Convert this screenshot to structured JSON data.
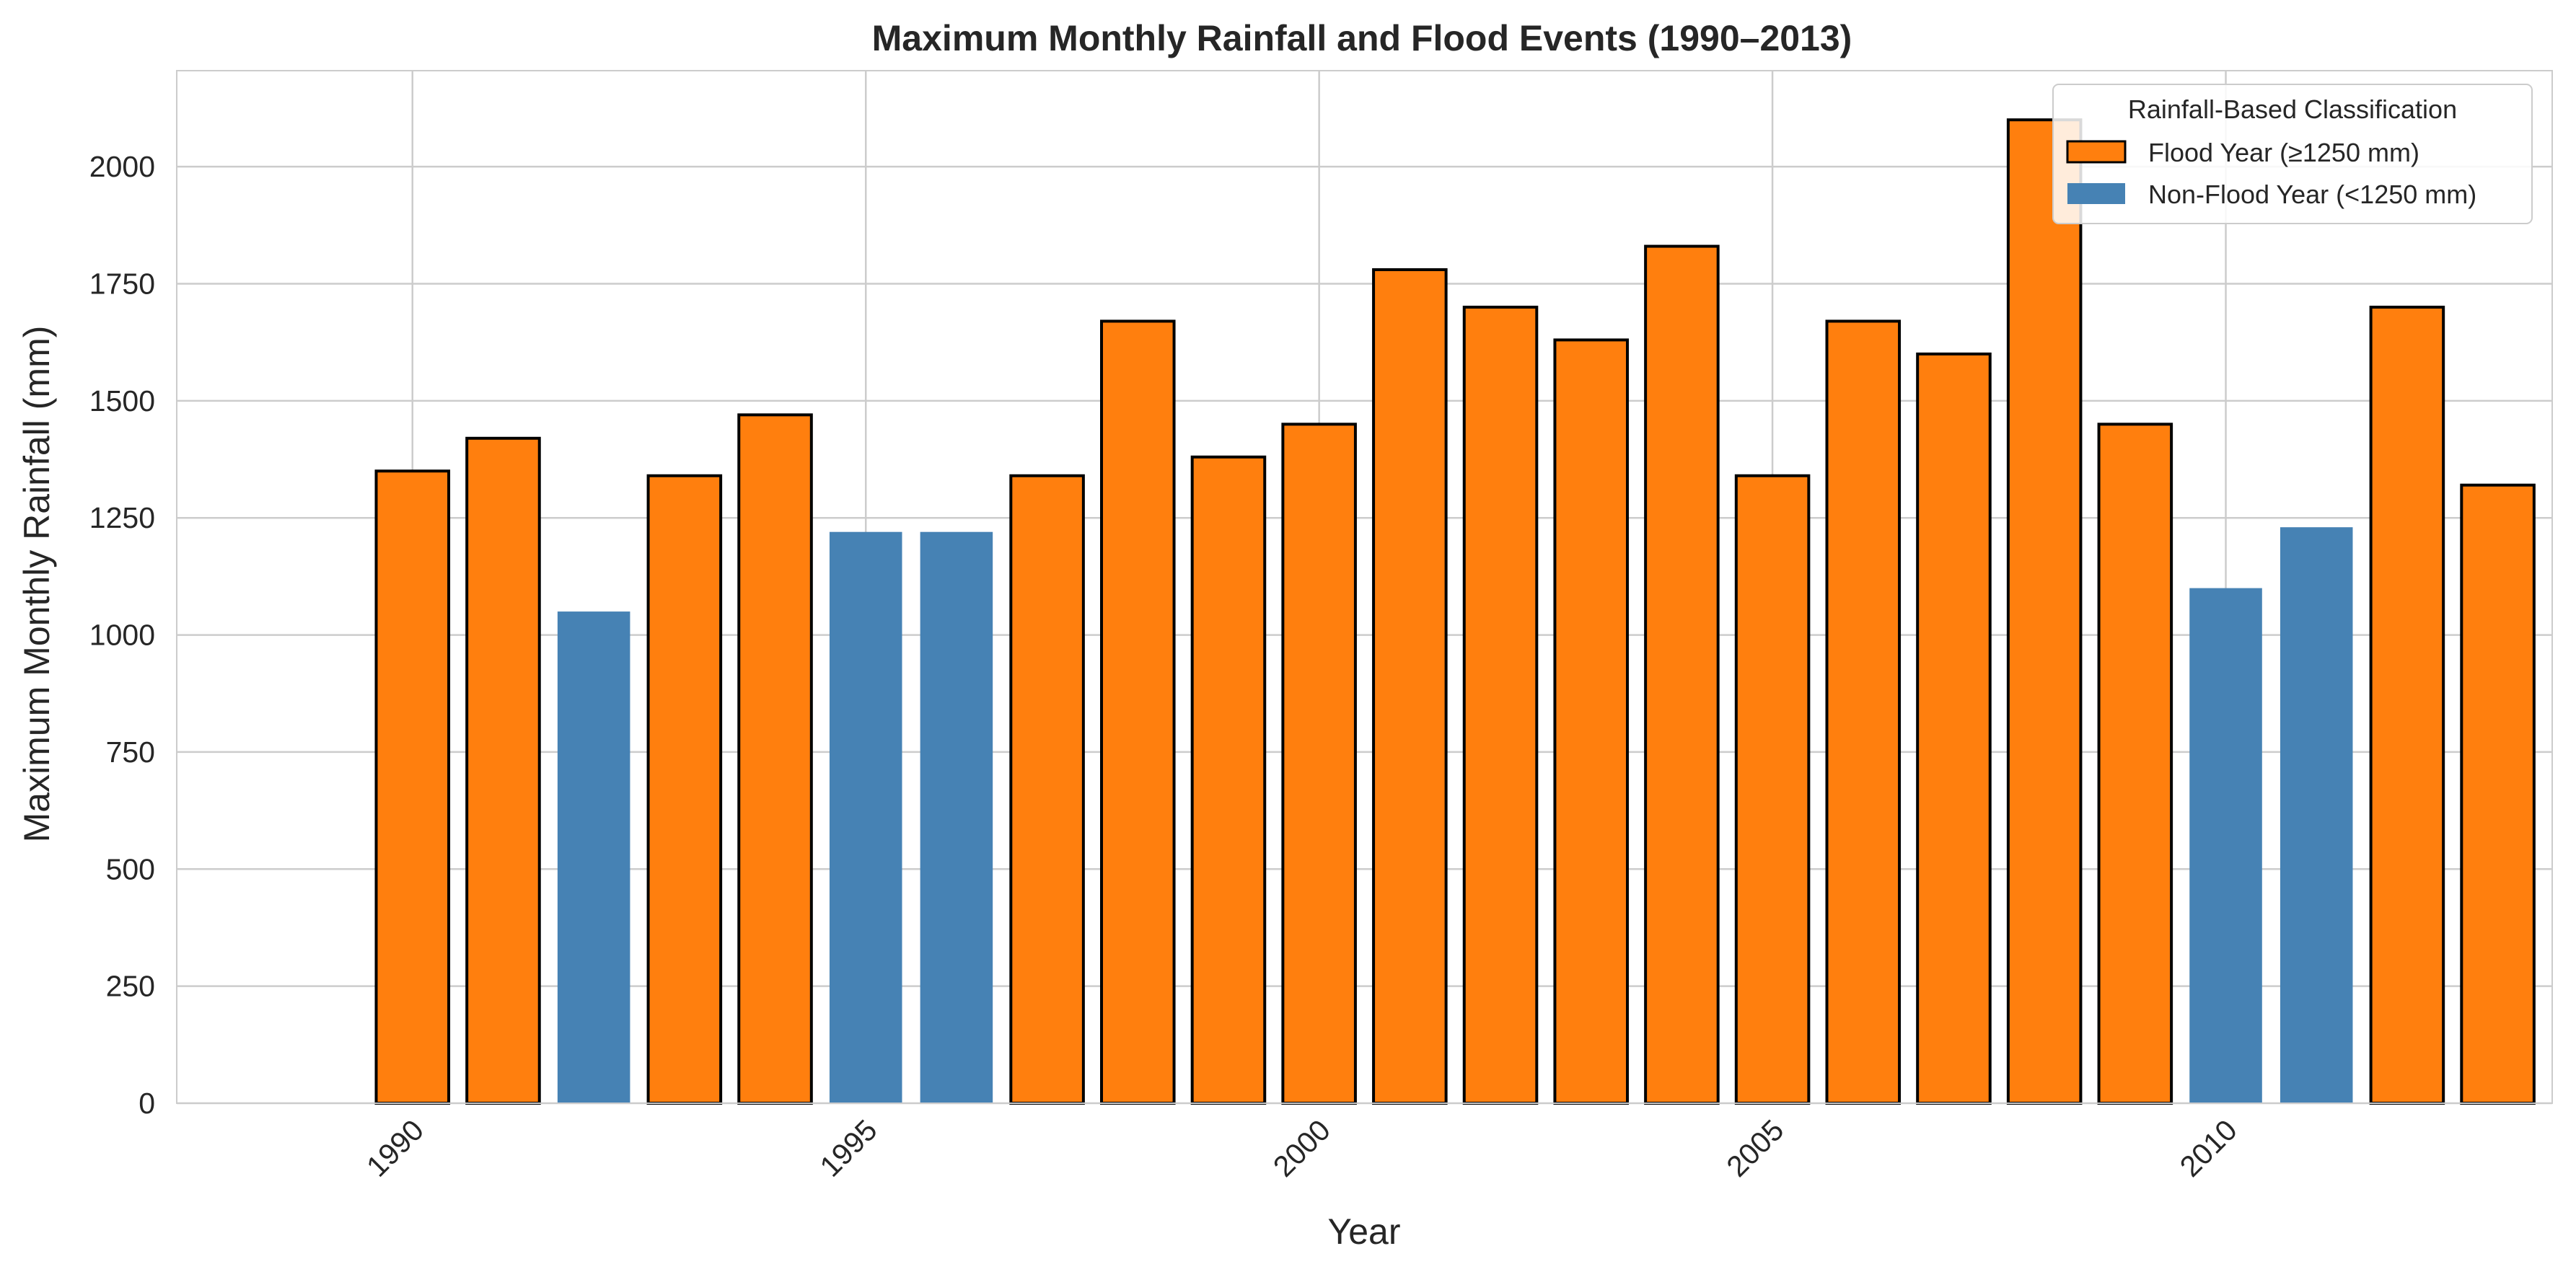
{
  "chart_data": {
    "type": "bar",
    "title": "Maximum Monthly Rainfall and Flood Events (1990–2013)",
    "xlabel": "Year",
    "ylabel": "Maximum Monthly Rainfall (mm)",
    "categories": [
      1990,
      1991,
      1992,
      1993,
      1994,
      1995,
      1996,
      1997,
      1998,
      1999,
      2000,
      2001,
      2002,
      2003,
      2004,
      2005,
      2006,
      2007,
      2008,
      2009,
      2010,
      2011,
      2012,
      2013
    ],
    "values": [
      1350,
      1420,
      1050,
      1340,
      1470,
      1220,
      1220,
      1340,
      1670,
      1380,
      1450,
      1780,
      1700,
      1630,
      1830,
      1340,
      1670,
      1600,
      2100,
      1450,
      1100,
      1230,
      1700,
      1320
    ],
    "classification": [
      "flood",
      "flood",
      "non-flood",
      "flood",
      "flood",
      "non-flood",
      "non-flood",
      "flood",
      "flood",
      "flood",
      "flood",
      "flood",
      "flood",
      "flood",
      "flood",
      "flood",
      "flood",
      "flood",
      "flood",
      "flood",
      "non-flood",
      "non-flood",
      "flood",
      "flood"
    ],
    "xticks": [
      1990,
      1995,
      2000,
      2005,
      2010
    ],
    "xlim": [
      1987.4,
      2013.6
    ],
    "yticks": [
      0,
      250,
      500,
      750,
      1000,
      1250,
      1500,
      1750,
      2000
    ],
    "ylim": [
      0,
      2205
    ],
    "grid": true,
    "legend": {
      "title": "Rainfall-Based Classification",
      "placement": "top-right",
      "entries": [
        {
          "key": "flood",
          "label": "Flood Year (≥1250 mm)"
        },
        {
          "key": "non-flood",
          "label": "Non-Flood Year (<1250 mm)"
        }
      ]
    },
    "colors": {
      "flood": "#ff7f0e",
      "non-flood": "#4682b4",
      "edge": "#000000",
      "grid": "#cccccc",
      "spine": "#cccccc",
      "text": "#262626"
    }
  }
}
